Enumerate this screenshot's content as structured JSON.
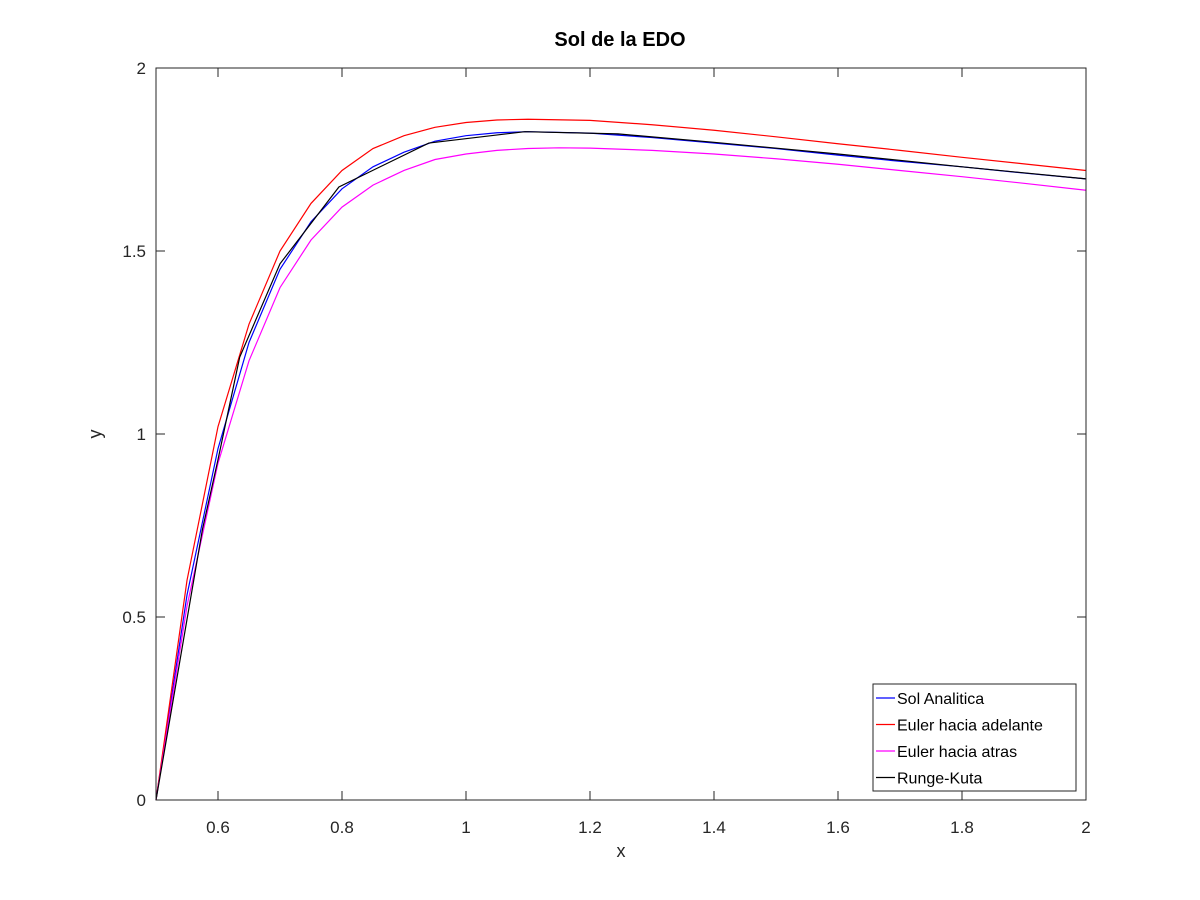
{
  "chart_data": {
    "type": "line",
    "title": "Sol de la EDO",
    "xlabel": "x",
    "ylabel": "y",
    "xlim": [
      0.5,
      2
    ],
    "ylim": [
      0,
      2
    ],
    "x_ticks": [
      0.6,
      0.8,
      1,
      1.2,
      1.4,
      1.6,
      1.8,
      2
    ],
    "x_tick_labels": [
      "0.6",
      "0.8",
      "1",
      "1.2",
      "1.4",
      "1.6",
      "1.8",
      "2"
    ],
    "y_ticks": [
      0,
      0.5,
      1,
      1.5,
      2
    ],
    "y_tick_labels": [
      "0",
      "0.5",
      "1",
      "1.5",
      "2"
    ],
    "grid": false,
    "legend_position": "bottom-right",
    "series": [
      {
        "name": "Sol Analitica",
        "color": "#0000ff",
        "x": [
          0.5,
          0.55,
          0.6,
          0.65,
          0.7,
          0.75,
          0.8,
          0.85,
          0.9,
          0.95,
          1.0,
          1.05,
          1.1,
          1.2,
          1.3,
          1.4,
          1.5,
          1.6,
          1.7,
          1.8,
          1.9,
          2.0
        ],
        "y": [
          0,
          0.56,
          0.96,
          1.25,
          1.45,
          1.58,
          1.67,
          1.73,
          1.77,
          1.8,
          1.815,
          1.823,
          1.826,
          1.822,
          1.81,
          1.795,
          1.78,
          1.762,
          1.745,
          1.73,
          1.713,
          1.697
        ]
      },
      {
        "name": "Euler hacia adelante",
        "color": "#ff0000",
        "x": [
          0.5,
          0.55,
          0.6,
          0.65,
          0.7,
          0.75,
          0.8,
          0.85,
          0.9,
          0.95,
          1.0,
          1.05,
          1.1,
          1.2,
          1.3,
          1.4,
          1.5,
          1.6,
          1.7,
          1.8,
          1.9,
          2.0
        ],
        "y": [
          0,
          0.6,
          1.02,
          1.3,
          1.5,
          1.63,
          1.72,
          1.78,
          1.815,
          1.838,
          1.851,
          1.858,
          1.86,
          1.857,
          1.845,
          1.83,
          1.812,
          1.793,
          1.775,
          1.756,
          1.738,
          1.72
        ]
      },
      {
        "name": "Euler hacia atras",
        "color": "#ff00ff",
        "x": [
          0.5,
          0.55,
          0.6,
          0.65,
          0.7,
          0.75,
          0.8,
          0.85,
          0.9,
          0.95,
          1.0,
          1.05,
          1.1,
          1.15,
          1.2,
          1.3,
          1.4,
          1.5,
          1.6,
          1.7,
          1.8,
          1.9,
          2.0
        ],
        "y": [
          0,
          0.53,
          0.92,
          1.2,
          1.4,
          1.53,
          1.62,
          1.68,
          1.72,
          1.75,
          1.765,
          1.775,
          1.78,
          1.782,
          1.781,
          1.775,
          1.765,
          1.752,
          1.737,
          1.72,
          1.703,
          1.685,
          1.666
        ]
      },
      {
        "name": "Runge-Kuta",
        "color": "#000000",
        "x": [
          0.5,
          0.575,
          0.6,
          0.635,
          0.7,
          0.795,
          0.94,
          1.095,
          1.245,
          1.4,
          1.6,
          1.8,
          2.0
        ],
        "y": [
          0,
          0.74,
          0.93,
          1.21,
          1.465,
          1.675,
          1.795,
          1.826,
          1.82,
          1.797,
          1.765,
          1.73,
          1.697
        ]
      }
    ]
  }
}
